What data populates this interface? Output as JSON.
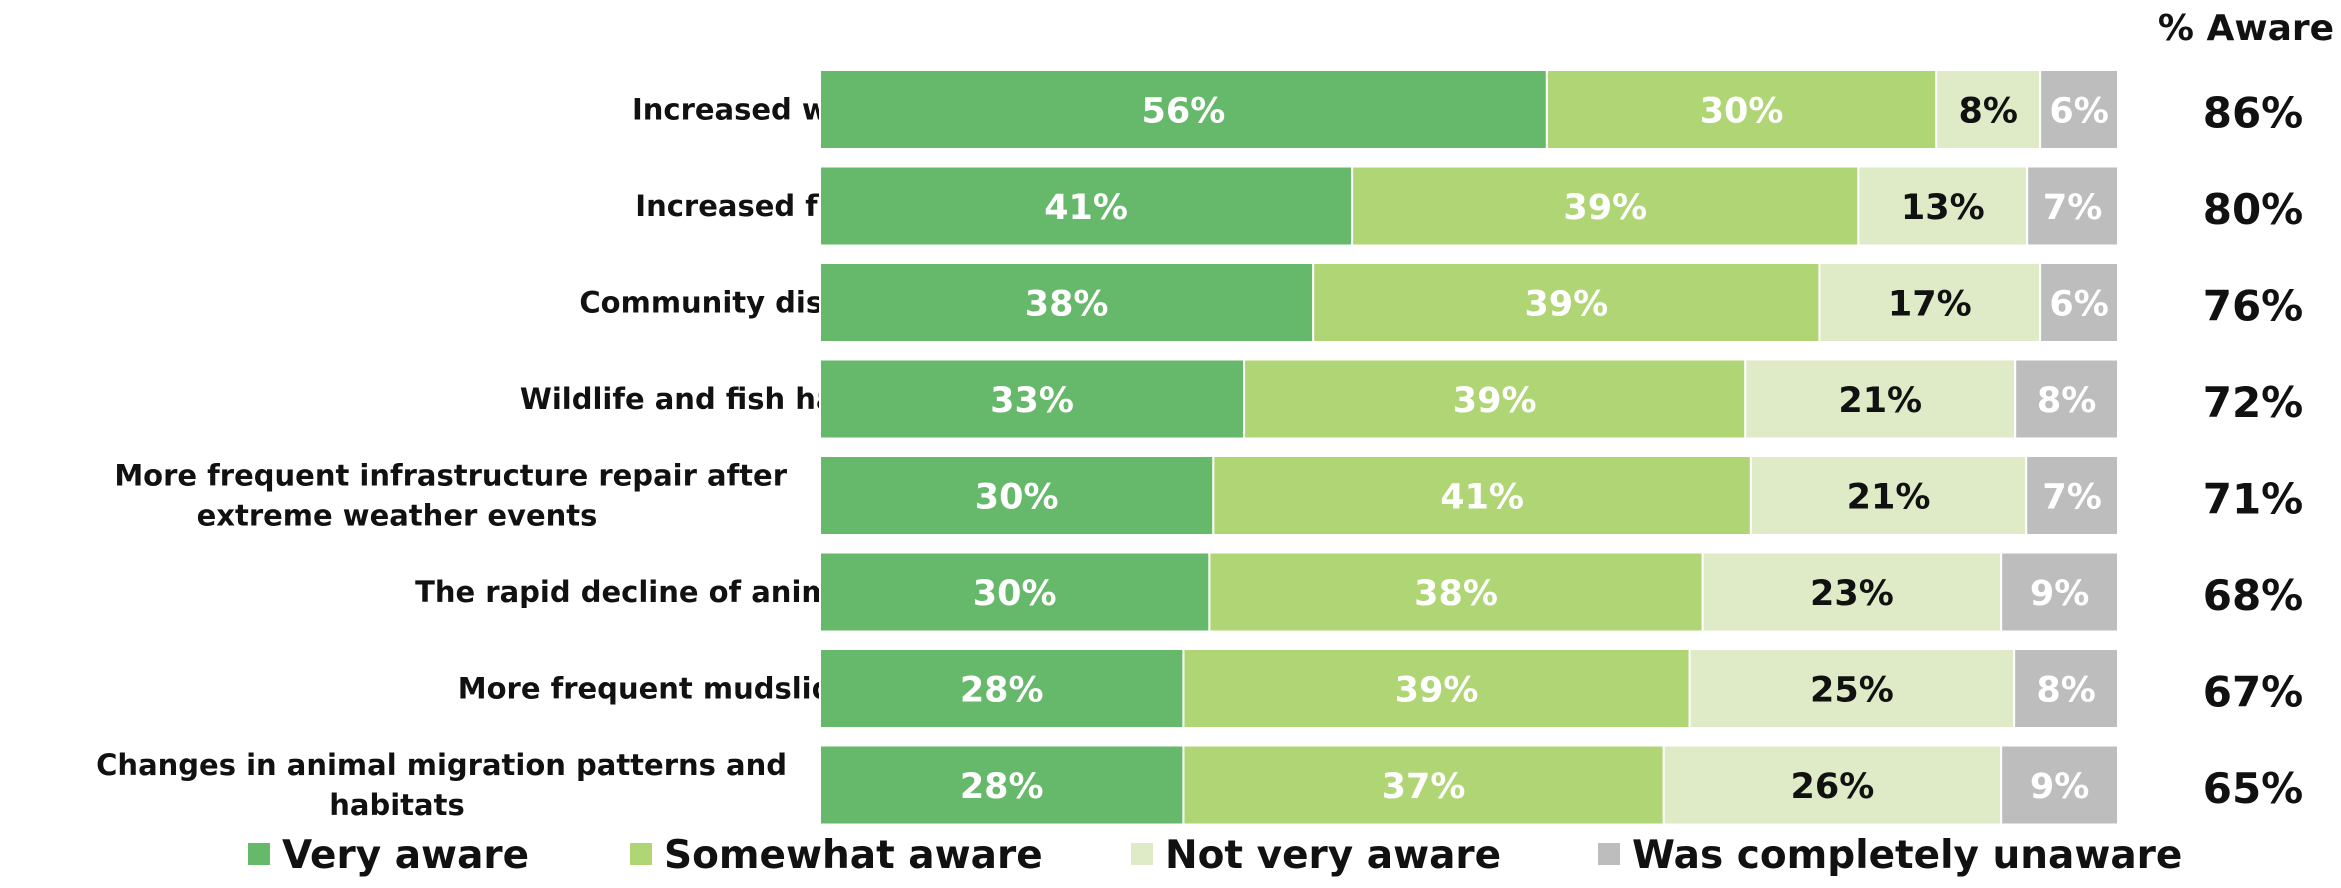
{
  "chart_data": {
    "type": "bar",
    "orientation": "horizontal",
    "stacked": true,
    "aware_header": "% Aware",
    "categories": [
      "Increased wildfires",
      "Increased flooding",
      "Community displacement",
      "Wildlife and fish habitat damage",
      "More frequent infrastructure repair after extreme weather events",
      "The rapid decline of animal and plant species",
      "More frequent mudslides and landslides",
      "Changes in animal migration patterns and habitats"
    ],
    "series": [
      {
        "name": "Very aware",
        "color": "#66b86a",
        "label_color": "#ffffff",
        "values": [
          56,
          41,
          38,
          33,
          30,
          30,
          28,
          28
        ]
      },
      {
        "name": "Somewhat aware",
        "color": "#afd574",
        "label_color": "#ffffff",
        "values": [
          30,
          39,
          39,
          39,
          41,
          38,
          39,
          37
        ]
      },
      {
        "name": "Not very aware",
        "color": "#deebc6",
        "label_color": "#111111",
        "values": [
          8,
          13,
          17,
          21,
          21,
          23,
          25,
          26
        ]
      },
      {
        "name": "Was completely unaware",
        "color": "#bdbdbd",
        "label_color": "#ffffff",
        "values": [
          6,
          7,
          6,
          8,
          7,
          9,
          8,
          9
        ]
      }
    ],
    "aware_totals": [
      "86%",
      "80%",
      "76%",
      "72%",
      "71%",
      "68%",
      "67%",
      "65%"
    ],
    "value_suffix": "%",
    "legend_position": "bottom"
  }
}
